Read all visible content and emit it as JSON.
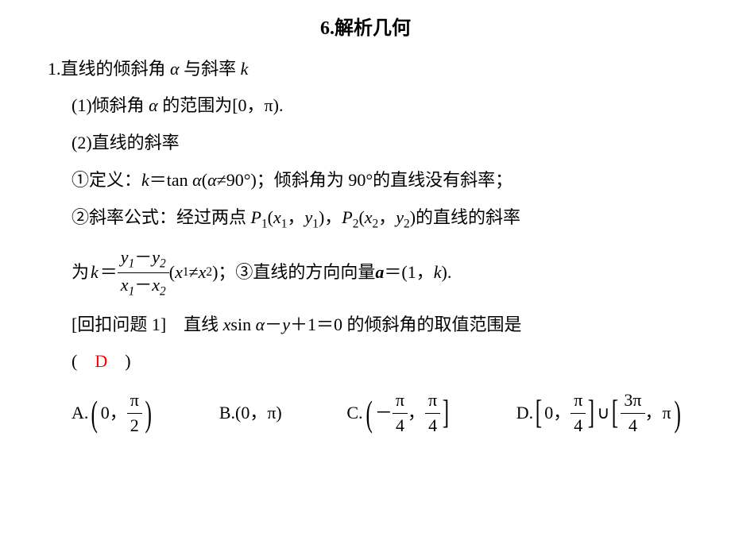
{
  "title": "6.解析几何",
  "p1": "1.直线的倾斜角 ",
  "p1_alpha": "α",
  "p1_rest": " 与斜率 ",
  "p1_k": "k",
  "p2_prefix": "(1)倾斜角 ",
  "p2_alpha": "α",
  "p2_rest": " 的范围为[0，π).",
  "p3": "(2)直线的斜率",
  "p4_a": "①定义：",
  "p4_k": "k",
  "p4_eq": "＝tan ",
  "p4_alpha": "α",
  "p4_paren_l": "(",
  "p4_alpha2": "α",
  "p4_ne": "≠90°)；倾斜角为 90°的直线没有斜率；",
  "p5_a": "②斜率公式：经过两点 ",
  "p5_P1": "P",
  "p5_sub1": "1",
  "p5_p1coord_l": "(",
  "p5_x1": "x",
  "p5_x1sub": "1",
  "p5_comma": "，",
  "p5_y1": "y",
  "p5_y1sub": "1",
  "p5_p1coord_r": ")，",
  "p5_P2": "P",
  "p5_sub2": "2",
  "p5_p2coord_l": "(",
  "p5_x2": "x",
  "p5_x2sub": "2",
  "p5_comma2": "，",
  "p5_y2": "y",
  "p5_y2sub": "2",
  "p5_p2coord_r": ")的直线的斜率",
  "p6_a": "为 ",
  "p6_k": "k",
  "p6_eq": "＝",
  "num_a": "y",
  "num_s1": "1",
  "num_minus": "－",
  "num_b": "y",
  "num_s2": "2",
  "den_a": "x",
  "den_s1": "1",
  "den_minus": "－",
  "den_b": "x",
  "den_s2": "2",
  "p6_cond_l": "(",
  "p6_x1": "x",
  "p6_x1s": "1",
  "p6_ne": "≠",
  "p6_x2": "x",
  "p6_x2s": "2",
  "p6_cond_r": ")；③直线的方向向量 ",
  "p6_a_bold": "a",
  "p6_vec": "＝(1，",
  "p6_k2": "k",
  "p6_end": ").",
  "q_label": "[回扣问题 1]　直线 ",
  "q_x": "x",
  "q_sin": "sin ",
  "q_alpha": "α",
  "q_minus": "－",
  "q_y": "y",
  "q_plus1": "＋1＝0 的倾斜角的取值范围是",
  "ans_l": "(　",
  "ans": "D",
  "ans_r": "　)",
  "optA": "A.",
  "optA_0": "0，",
  "optA_pi": "π",
  "optA_2": "2",
  "optB": "B.(0，π)",
  "optC": "C.",
  "optC_neg": "－",
  "optC_pi1": "π",
  "optC_4a": "4",
  "optC_comma": "，",
  "optC_pi2": "π",
  "optC_4b": "4",
  "optD": "D.",
  "optD_0": "0，",
  "optD_pi1": "π",
  "optD_4a": "4",
  "optD_cup": "∪",
  "optD_3pi": "3π",
  "optD_4b": "4",
  "optD_comma": "，π"
}
